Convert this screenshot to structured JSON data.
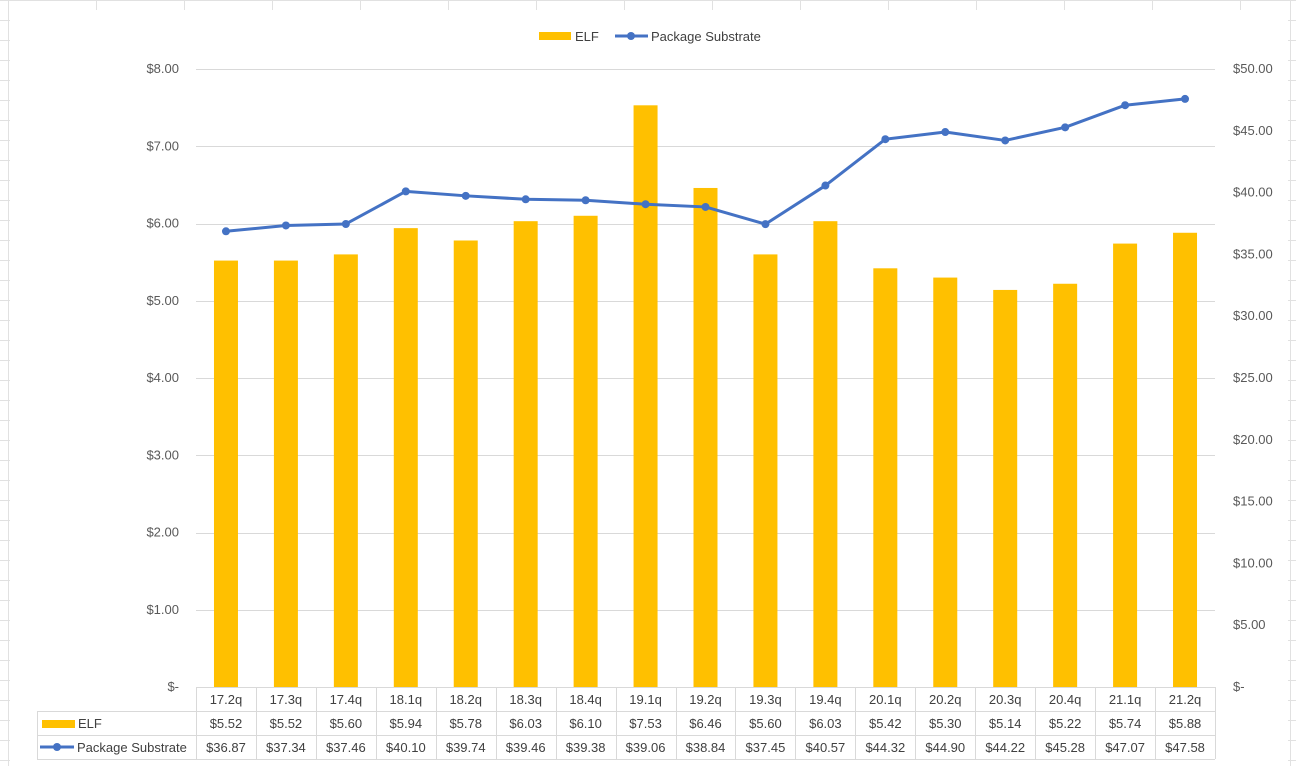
{
  "chart_data": {
    "type": "bar",
    "legend_position": "top",
    "data_table": true,
    "grid": true,
    "categories": [
      "17.2q",
      "17.3q",
      "17.4q",
      "18.1q",
      "18.2q",
      "18.3q",
      "18.4q",
      "19.1q",
      "19.2q",
      "19.3q",
      "19.4q",
      "20.1q",
      "20.2q",
      "20.3q",
      "20.4q",
      "21.1q",
      "21.2q"
    ],
    "series": [
      {
        "name": "ELF",
        "type": "bar",
        "axis": "left",
        "color": "#FFC000",
        "values": [
          5.52,
          5.52,
          5.6,
          5.94,
          5.78,
          6.03,
          6.1,
          7.53,
          6.46,
          5.6,
          6.03,
          5.42,
          5.3,
          5.14,
          5.22,
          5.74,
          5.88
        ],
        "labels": [
          "$5.52",
          "$5.52",
          "$5.60",
          "$5.94",
          "$5.78",
          "$6.03",
          "$6.10",
          "$7.53",
          "$6.46",
          "$5.60",
          "$6.03",
          "$5.42",
          "$5.30",
          "$5.14",
          "$5.22",
          "$5.74",
          "$5.88"
        ]
      },
      {
        "name": "Package Substrate",
        "type": "line",
        "axis": "right",
        "color": "#4472C4",
        "values": [
          36.87,
          37.34,
          37.46,
          40.1,
          39.74,
          39.46,
          39.38,
          39.06,
          38.84,
          37.45,
          40.57,
          44.32,
          44.9,
          44.22,
          45.28,
          47.07,
          47.58
        ],
        "labels": [
          "$36.87",
          "$37.34",
          "$37.46",
          "$40.10",
          "$39.74",
          "$39.46",
          "$39.38",
          "$39.06",
          "$38.84",
          "$37.45",
          "$40.57",
          "$44.32",
          "$44.90",
          "$44.22",
          "$45.28",
          "$47.07",
          "$47.58"
        ]
      }
    ],
    "y_left": {
      "ylim": [
        0,
        8
      ],
      "ticks": [
        0,
        1,
        2,
        3,
        4,
        5,
        6,
        7,
        8
      ],
      "tick_labels": [
        "$-",
        "$1.00",
        "$2.00",
        "$3.00",
        "$4.00",
        "$5.00",
        "$6.00",
        "$7.00",
        "$8.00"
      ]
    },
    "y_right": {
      "ylim": [
        0,
        50
      ],
      "ticks": [
        0,
        5,
        10,
        15,
        20,
        25,
        30,
        35,
        40,
        45,
        50
      ],
      "tick_labels": [
        "$-",
        "$5.00",
        "$10.00",
        "$15.00",
        "$20.00",
        "$25.00",
        "$30.00",
        "$35.00",
        "$40.00",
        "$45.00",
        "$50.00"
      ]
    }
  }
}
